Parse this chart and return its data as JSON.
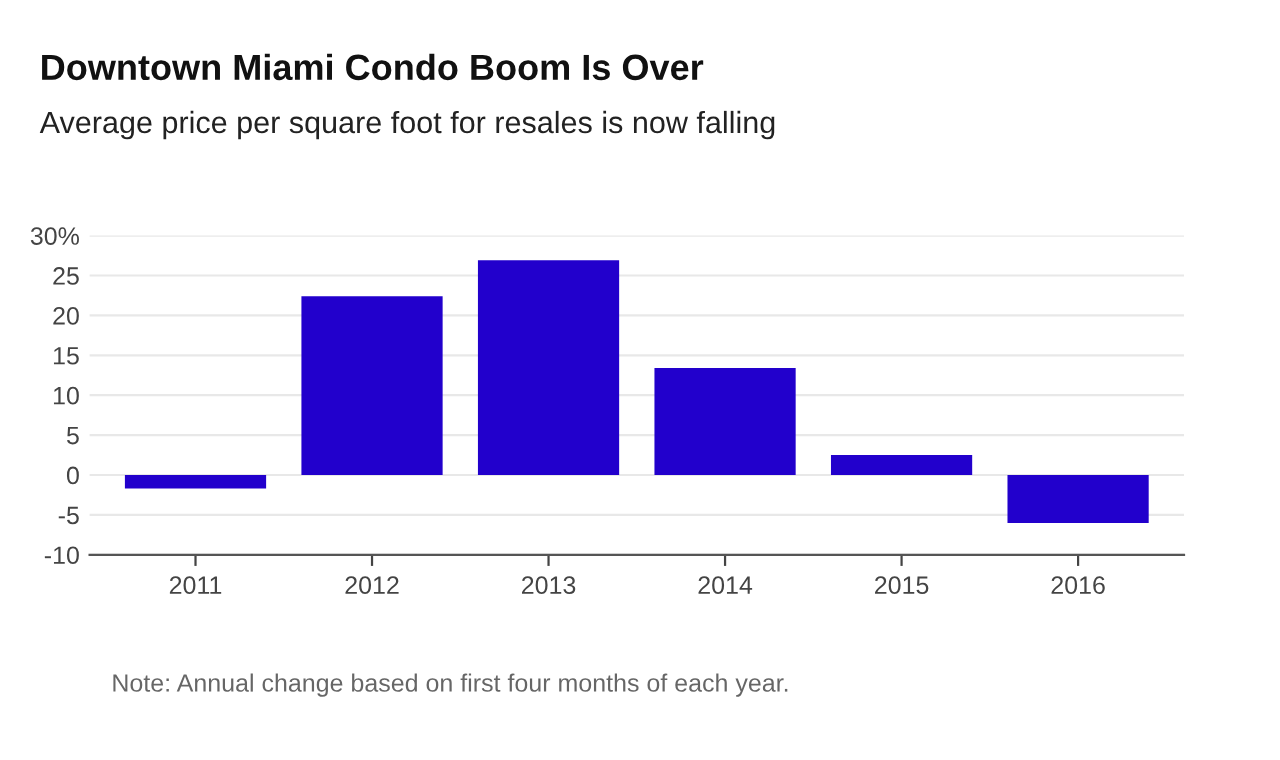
{
  "chart_data": {
    "type": "bar",
    "title": "Downtown Miami Condo Boom Is Over",
    "subtitle": "Average price per square foot for resales is now falling",
    "categories": [
      "2011",
      "2012",
      "2013",
      "2014",
      "2015",
      "2016"
    ],
    "values": [
      -1.7,
      22.4,
      26.9,
      13.4,
      2.5,
      -6.0
    ],
    "color": "#2200cc",
    "ylim": [
      -10,
      30
    ],
    "yticks": [
      {
        "value": -10,
        "label": "-10"
      },
      {
        "value": -5,
        "label": "-5"
      },
      0,
      5,
      10,
      15,
      20,
      25,
      {
        "value": 30,
        "label": "30%"
      }
    ],
    "grid": "y",
    "annotations": [
      "Note: Annual change based on first four months of each year."
    ]
  }
}
